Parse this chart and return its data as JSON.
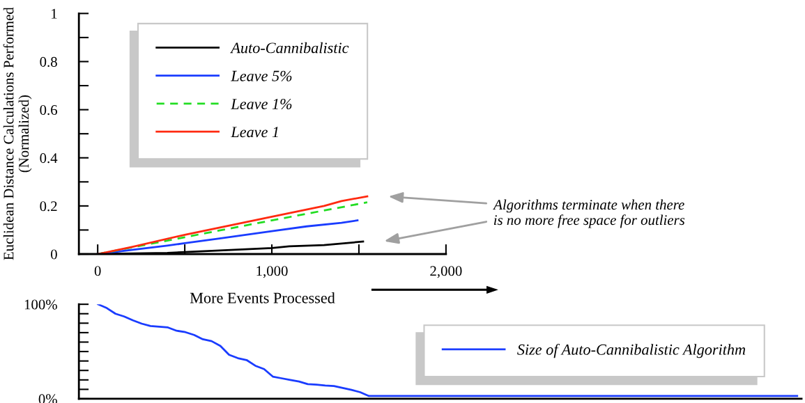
{
  "chart_data": [
    {
      "type": "line",
      "ylabel": "Euclidean Distance Calculations Performed\n(Normalized)",
      "xlabel": "More Events Processed",
      "xlim": [
        -108,
        2000
      ],
      "xticks": [
        0,
        {
          "value": 500,
          "label": null
        },
        {
          "value": 1000,
          "label": "1,000"
        },
        {
          "value": 1500,
          "label": null
        },
        {
          "value": 2000,
          "label": "2,000"
        }
      ],
      "ylim": [
        0,
        1
      ],
      "yticks": [
        0,
        {
          "value": 0.1,
          "label": null
        },
        0.2,
        {
          "value": 0.3,
          "label": null
        },
        0.4,
        {
          "value": 0.5,
          "label": null
        },
        0.6,
        {
          "value": 0.7,
          "label": null
        },
        0.8,
        {
          "value": 0.9,
          "label": null
        },
        1
      ],
      "legend": "top left",
      "grid": false,
      "annotations": [
        "Algorithms terminate when there\nis no more free space for outliers"
      ],
      "series": [
        {
          "name": "Auto-Cannibalistic",
          "color": "#000000",
          "x": [
            0,
            400,
            700,
            1000,
            1100,
            1300,
            1524
          ],
          "values": [
            0,
            0.005,
            0.015,
            0.025,
            0.032,
            0.037,
            0.052
          ]
        },
        {
          "name": "Leave 5%",
          "color": "#1a3cff",
          "x": [
            0,
            400,
            500,
            700,
            1000,
            1200,
            1400,
            1492
          ],
          "values": [
            0,
            0.035,
            0.045,
            0.065,
            0.095,
            0.115,
            0.13,
            0.14
          ]
        },
        {
          "name": "Leave 1%",
          "color": "#22dd22",
          "line_style": "dashed",
          "x": [
            0,
            500,
            1000,
            1548
          ],
          "values": [
            0,
            0.07,
            0.14,
            0.215
          ]
        },
        {
          "name": "Leave 1",
          "color": "#ff2a10",
          "x": [
            0,
            200,
            500,
            1000,
            1300,
            1400,
            1548
          ],
          "values": [
            0,
            0.03,
            0.08,
            0.155,
            0.2,
            0.22,
            0.24
          ]
        }
      ]
    },
    {
      "type": "line",
      "tick_labels": "y",
      "legend": "right",
      "grid": false,
      "categories": [
        null,
        null,
        null,
        null,
        null,
        null,
        null,
        null,
        null,
        null,
        null,
        null,
        null,
        null,
        null,
        null,
        null,
        null,
        null,
        null,
        null,
        null,
        null,
        null,
        null,
        null,
        null,
        null,
        null,
        null,
        null,
        null,
        null,
        null,
        null,
        null,
        null,
        null,
        null,
        null,
        null,
        null,
        null,
        null,
        null,
        null,
        null,
        null,
        null,
        null,
        null,
        null,
        null,
        null,
        null,
        null,
        null,
        null,
        null,
        null,
        null,
        null,
        null,
        null,
        null,
        null,
        null,
        null,
        null,
        null,
        null,
        null,
        null,
        null,
        null,
        null,
        null,
        null,
        null,
        null,
        null
      ],
      "ylim": [
        0,
        100
      ],
      "yticks": [
        {
          "value": 0,
          "label": "0%"
        },
        {
          "value": 10,
          "label": null
        },
        {
          "value": 20,
          "label": null
        },
        {
          "value": 30,
          "label": null
        },
        {
          "value": 40,
          "label": null
        },
        {
          "value": 50,
          "label": null
        },
        {
          "value": 60,
          "label": null
        },
        {
          "value": 70,
          "label": null
        },
        {
          "value": 80,
          "label": null
        },
        {
          "value": 90,
          "label": null
        },
        {
          "value": 100,
          "label": "100%"
        }
      ],
      "series": [
        {
          "name": "Size of Auto-Cannibalistic Algorithm",
          "color": "#1a3cff",
          "values": [
            100,
            96,
            90,
            87,
            83,
            79.5,
            77,
            76.3,
            75.5,
            72,
            70.5,
            67.5,
            63,
            61,
            56,
            46.5,
            43,
            41,
            35,
            31.5,
            23.5,
            21.7,
            20,
            18.3,
            15.5,
            15,
            14,
            13.5,
            11.5,
            9.5,
            7,
            3,
            3,
            3,
            3,
            3,
            3,
            3,
            3,
            3,
            3,
            3,
            3,
            3,
            3,
            3,
            3,
            3,
            3,
            3,
            3,
            3,
            3,
            3,
            3,
            3,
            3,
            3,
            3,
            3,
            3,
            3,
            3,
            3,
            3,
            3,
            3,
            3,
            3,
            3,
            3,
            3,
            3,
            3,
            3,
            3,
            3,
            3,
            3,
            3,
            3
          ]
        }
      ]
    }
  ]
}
